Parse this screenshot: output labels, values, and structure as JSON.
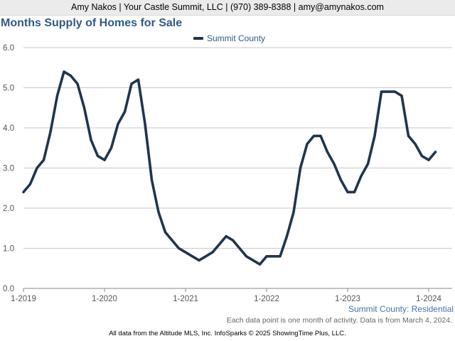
{
  "header": {
    "contact_line": "Amy Nakos | Your Castle Summit, LLC | (970) 389-8388 | amy@amynakos.com"
  },
  "chart_data": {
    "type": "line",
    "title": "Months Supply of Homes for Sale",
    "legend_position": "top-center",
    "grid": true,
    "ylim": [
      0,
      6
    ],
    "y_ticks": [
      "0.0",
      "1.0",
      "2.0",
      "3.0",
      "4.0",
      "5.0",
      "6.0"
    ],
    "x_ticks": [
      "1-2019",
      "1-2020",
      "1-2021",
      "1-2022",
      "1-2023",
      "1-2024"
    ],
    "x_start": "2019-01",
    "x_end": "2024-02",
    "series": [
      {
        "name": "Summit County",
        "color": "#1f3550",
        "values": [
          2.4,
          2.6,
          3.0,
          3.2,
          3.9,
          4.8,
          5.4,
          5.3,
          5.1,
          4.5,
          3.7,
          3.3,
          3.2,
          3.5,
          4.1,
          4.4,
          5.1,
          5.2,
          4.1,
          2.7,
          1.9,
          1.4,
          1.2,
          1.0,
          0.9,
          0.8,
          0.7,
          0.8,
          0.9,
          1.1,
          1.3,
          1.2,
          1.0,
          0.8,
          0.7,
          0.6,
          0.8,
          0.8,
          0.8,
          1.3,
          1.9,
          3.0,
          3.6,
          3.8,
          3.8,
          3.4,
          3.1,
          2.7,
          2.4,
          2.4,
          2.8,
          3.1,
          3.8,
          4.9,
          4.9,
          4.9,
          4.8,
          3.8,
          3.6,
          3.3,
          3.2,
          3.4
        ]
      }
    ]
  },
  "footnotes": {
    "region_label": "Summit County: Residential",
    "data_note": "Each data point is one month of activity. Data is from March 4, 2024.",
    "source": "All data from the Altitude MLS, Inc. InfoSparks © 2025 ShowingTime Plus, LLC."
  }
}
